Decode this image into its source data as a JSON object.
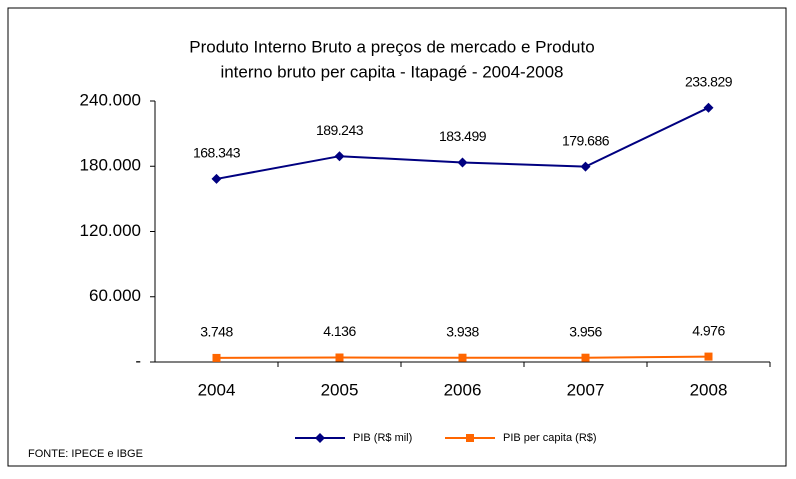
{
  "chart_data": {
    "type": "line",
    "title": [
      "Produto Interno Bruto a preços de mercado  e   Produto",
      "interno bruto per capita - Itapagé - 2004-2008"
    ],
    "categories": [
      "2004",
      "2005",
      "2006",
      "2007",
      "2008"
    ],
    "series": [
      {
        "name": "PIB (R$ mil)",
        "color": "#000080",
        "marker": "diamond",
        "values": [
          168343,
          189243,
          183499,
          179686,
          233829
        ],
        "value_labels": [
          "168.343",
          "189.243",
          "183.499",
          "179.686",
          "233.829"
        ]
      },
      {
        "name": "PIB per capita (R$)",
        "color": "#ff6600",
        "marker": "square",
        "values": [
          3748,
          4136,
          3938,
          3956,
          4976
        ],
        "value_labels": [
          "3.748",
          "4.136",
          "3.938",
          "3.956",
          "4.976"
        ]
      }
    ],
    "ylim": [
      0,
      240000
    ],
    "yticks": [
      {
        "value": 0,
        "label": "-"
      },
      {
        "value": 60000,
        "label": "60.000"
      },
      {
        "value": 120000,
        "label": "120.000"
      },
      {
        "value": 180000,
        "label": "180.000"
      },
      {
        "value": 240000,
        "label": "240.000"
      }
    ],
    "legend": "bottom",
    "source": "FONTE: IPECE e IBGE"
  }
}
